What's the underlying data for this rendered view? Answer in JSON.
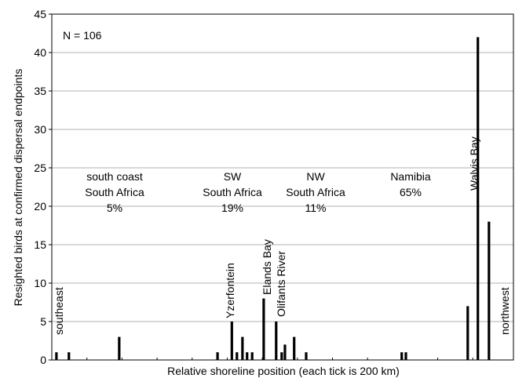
{
  "chart_data": {
    "type": "bar",
    "xlabel": "Relative shoreline position (each tick is 200 km)",
    "ylabel": "Resighted birds at confirmed dispersal endpoints",
    "ylim": [
      0,
      45
    ],
    "yticks": [
      0,
      5,
      10,
      15,
      20,
      25,
      30,
      35,
      40,
      45
    ],
    "xlim": [
      0,
      100
    ],
    "xtick_positions": [
      7.6,
      15.2,
      22.8,
      30.4,
      38.0,
      45.6,
      53.2,
      60.8,
      68.4,
      76.0,
      83.6,
      91.2
    ],
    "grid": "horizontal",
    "n_label": "N = 106",
    "bars": [
      {
        "x": 1.0,
        "value": 1
      },
      {
        "x": 3.7,
        "value": 1
      },
      {
        "x": 14.6,
        "value": 3
      },
      {
        "x": 35.9,
        "value": 1
      },
      {
        "x": 39.0,
        "value": 5
      },
      {
        "x": 40.1,
        "value": 1
      },
      {
        "x": 41.3,
        "value": 3
      },
      {
        "x": 42.3,
        "value": 1
      },
      {
        "x": 43.4,
        "value": 1
      },
      {
        "x": 45.9,
        "value": 8
      },
      {
        "x": 48.6,
        "value": 5
      },
      {
        "x": 49.8,
        "value": 1
      },
      {
        "x": 50.5,
        "value": 2
      },
      {
        "x": 52.5,
        "value": 3
      },
      {
        "x": 55.1,
        "value": 1
      },
      {
        "x": 75.8,
        "value": 1
      },
      {
        "x": 76.7,
        "value": 1
      },
      {
        "x": 90.1,
        "value": 7
      },
      {
        "x": 92.3,
        "value": 42
      },
      {
        "x": 94.7,
        "value": 18
      }
    ],
    "region_labels": [
      {
        "name": "south coast",
        "line2": "South Africa",
        "percent": "5%"
      },
      {
        "name": "SW",
        "line2": "South Africa",
        "percent": "19%"
      },
      {
        "name": "NW",
        "line2": "South Africa",
        "percent": "11%"
      },
      {
        "name": "Namibia",
        "percent": "65%"
      }
    ],
    "site_labels": [
      "Yzerfontein",
      "Elands Bay",
      "Olifants River",
      "Walvis Bay"
    ],
    "direction_labels": {
      "left": "southeast",
      "right": "northwest"
    },
    "colors": {
      "bars": "#000000",
      "grid": "#b0b0b0",
      "axis": "#000000"
    }
  }
}
